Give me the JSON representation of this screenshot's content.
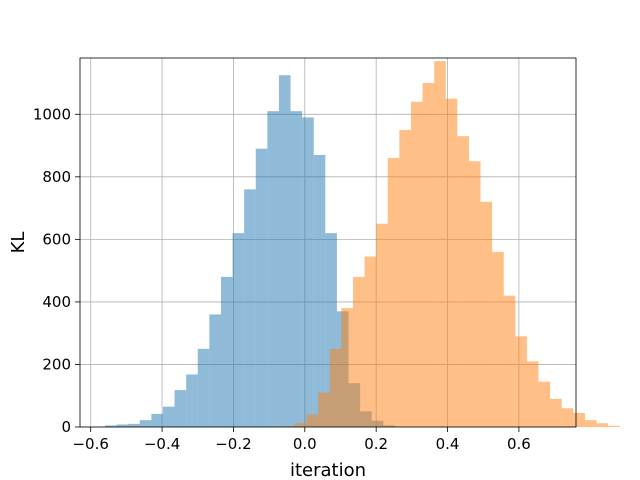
{
  "chart_data": {
    "type": "bar",
    "title": "",
    "xlabel": "iteration",
    "ylabel": "KL",
    "xlim": [
      -0.63,
      0.76
    ],
    "ylim": [
      0,
      1180
    ],
    "x_ticks": [
      -0.6,
      -0.4,
      -0.2,
      0.0,
      0.2,
      0.4,
      0.6
    ],
    "x_tick_labels": [
      "−0.6",
      "−0.4",
      "−0.2",
      "0.0",
      "0.2",
      "0.4",
      "0.6"
    ],
    "y_ticks": [
      0,
      200,
      400,
      600,
      800,
      1000
    ],
    "y_tick_labels": [
      "0",
      "200",
      "400",
      "600",
      "800",
      "1000"
    ],
    "grid": true,
    "legend": "none",
    "bin_width": 0.0325,
    "series": [
      {
        "color": "#1f77b4",
        "opacity": 0.5,
        "bin_start": -0.56,
        "counts": [
          5,
          8,
          10,
          22,
          42,
          65,
          118,
          168,
          250,
          360,
          480,
          620,
          760,
          890,
          1010,
          1125,
          1010,
          990,
          870,
          620,
          370,
          140,
          50,
          20,
          5
        ]
      },
      {
        "color": "#ff7f0e",
        "opacity": 0.5,
        "bin_start": -0.06,
        "counts": [
          3,
          12,
          40,
          110,
          250,
          380,
          480,
          545,
          650,
          860,
          950,
          1040,
          1100,
          1170,
          1050,
          930,
          850,
          720,
          560,
          420,
          290,
          210,
          145,
          90,
          60,
          45,
          22,
          12,
          4
        ]
      }
    ]
  }
}
